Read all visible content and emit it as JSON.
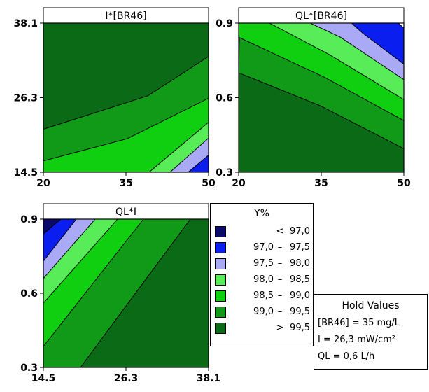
{
  "chart_data": [
    {
      "type": "contour",
      "title": "I*[BR46]",
      "x_variable": "[BR46]",
      "y_variable": "I",
      "x_ticks": [
        "20",
        "35",
        "50"
      ],
      "y_ticks": [
        "38.1",
        "26.3",
        "14.5"
      ],
      "xlim": [
        20,
        50
      ],
      "ylim": [
        14.5,
        38.1
      ],
      "contour_levels": [
        97.0,
        97.5,
        98.0,
        98.5,
        99.0,
        99.5
      ],
      "regions": [
        {
          "band": "> 99.5",
          "color": "#0a6a16",
          "polygon": [
            [
              20,
              38.1
            ],
            [
              50,
              38.1
            ],
            [
              50,
              32.8
            ],
            [
              39,
              26.6
            ],
            [
              20,
              21.3
            ]
          ]
        },
        {
          "band": "99.0 - 99.5",
          "color": "#109a18",
          "polygon": [
            [
              20,
              21.3
            ],
            [
              39,
              26.6
            ],
            [
              50,
              32.8
            ],
            [
              50,
              26.2
            ],
            [
              35.2,
              19.8
            ],
            [
              20,
              16.3
            ]
          ]
        },
        {
          "band": "98.5 - 99.0",
          "color": "#10cf10",
          "polygon": [
            [
              20,
              16.3
            ],
            [
              35.2,
              19.8
            ],
            [
              50,
              26.2
            ],
            [
              50,
              22.4
            ],
            [
              39.2,
              14.5
            ],
            [
              20,
              14.5
            ]
          ]
        },
        {
          "band": "98.0 - 98.5",
          "color": "#58ec58",
          "polygon": [
            [
              39.2,
              14.5
            ],
            [
              50,
              22.4
            ],
            [
              50,
              19.9
            ],
            [
              43,
              14.5
            ]
          ]
        },
        {
          "band": "97.5 - 98.0",
          "color": "#a9a9f5",
          "polygon": [
            [
              43,
              14.5
            ],
            [
              50,
              19.9
            ],
            [
              50,
              17.2
            ],
            [
              46.3,
              14.5
            ]
          ]
        },
        {
          "band": "97.0 - 97.5",
          "color": "#0a1ef0",
          "polygon": [
            [
              46.3,
              14.5
            ],
            [
              50,
              17.2
            ],
            [
              50,
              14.5
            ]
          ]
        }
      ]
    },
    {
      "type": "contour",
      "title": "QL*[BR46]",
      "x_variable": "[BR46]",
      "y_variable": "QL",
      "x_ticks": [
        "20",
        "35",
        "50"
      ],
      "y_ticks": [
        "0.9",
        "0.6",
        "0.3"
      ],
      "xlim": [
        20,
        50
      ],
      "ylim": [
        0.3,
        0.9
      ],
      "contour_levels": [
        97.0,
        97.5,
        98.0,
        98.5,
        99.0,
        99.5
      ],
      "regions": [
        {
          "band": "> 99.5",
          "color": "#0a6a16",
          "polygon": [
            [
              20,
              0.3
            ],
            [
              20,
              0.7
            ],
            [
              35,
              0.566
            ],
            [
              50,
              0.395
            ],
            [
              50,
              0.3
            ]
          ]
        },
        {
          "band": "99.0 - 99.5",
          "color": "#109a18",
          "polygon": [
            [
              20,
              0.7
            ],
            [
              35,
              0.566
            ],
            [
              50,
              0.395
            ],
            [
              50,
              0.508
            ],
            [
              35.5,
              0.683
            ],
            [
              20,
              0.843
            ],
            [
              20,
              0.9
            ],
            [
              20.2,
              0.9
            ]
          ]
        },
        {
          "band": "98.5 - 99.0",
          "color": "#10cf10",
          "polygon": [
            [
              20,
              0.843
            ],
            [
              35.5,
              0.683
            ],
            [
              50,
              0.508
            ],
            [
              50,
              0.592
            ],
            [
              36.5,
              0.773
            ],
            [
              25.6,
              0.9
            ],
            [
              20,
              0.9
            ]
          ]
        },
        {
          "band": "98.0 - 98.5",
          "color": "#58ec58",
          "polygon": [
            [
              25.6,
              0.9
            ],
            [
              36.5,
              0.773
            ],
            [
              50,
              0.592
            ],
            [
              50,
              0.672
            ],
            [
              38.5,
              0.843
            ],
            [
              33,
              0.9
            ]
          ]
        },
        {
          "band": "97.5 - 98.0",
          "color": "#a9a9f5",
          "polygon": [
            [
              33,
              0.9
            ],
            [
              38.5,
              0.843
            ],
            [
              50,
              0.672
            ],
            [
              50,
              0.735
            ],
            [
              42.5,
              0.86
            ],
            [
              40.5,
              0.9
            ]
          ]
        },
        {
          "band": "97.0 - 97.5",
          "color": "#0a1ef0",
          "polygon": [
            [
              40.5,
              0.9
            ],
            [
              42.5,
              0.86
            ],
            [
              50,
              0.735
            ],
            [
              50,
              0.88
            ],
            [
              49,
              0.9
            ]
          ]
        }
      ]
    },
    {
      "type": "contour",
      "title": "QL*I",
      "x_variable": "I",
      "y_variable": "QL",
      "x_ticks": [
        "14.5",
        "26.3",
        "38.1"
      ],
      "y_ticks": [
        "0.9",
        "0.6",
        "0.3"
      ],
      "xlim": [
        14.5,
        38.1
      ],
      "ylim": [
        0.3,
        0.9
      ],
      "contour_levels": [
        97.0,
        97.5,
        98.0,
        98.5,
        99.0,
        99.5
      ],
      "regions": [
        {
          "band": "> 99.5",
          "color": "#0a6a16",
          "polygon": [
            [
              19.8,
              0.3
            ],
            [
              38.1,
              0.3
            ],
            [
              38.1,
              0.9
            ],
            [
              35.5,
              0.9
            ]
          ]
        },
        {
          "band": "99.0 - 99.5",
          "color": "#109a18",
          "polygon": [
            [
              14.5,
              0.3
            ],
            [
              19.8,
              0.3
            ],
            [
              35.5,
              0.9
            ],
            [
              28.8,
              0.9
            ],
            [
              14.5,
              0.385
            ]
          ]
        },
        {
          "band": "98.5 - 99.0",
          "color": "#10cf10",
          "polygon": [
            [
              14.5,
              0.385
            ],
            [
              28.8,
              0.9
            ],
            [
              25.1,
              0.9
            ],
            [
              14.5,
              0.56
            ]
          ]
        },
        {
          "band": "98.0 - 98.5",
          "color": "#58ec58",
          "polygon": [
            [
              14.5,
              0.56
            ],
            [
              25.1,
              0.9
            ],
            [
              21.9,
              0.9
            ],
            [
              14.5,
              0.66
            ]
          ]
        },
        {
          "band": "97.5 - 98.0",
          "color": "#a9a9f5",
          "polygon": [
            [
              14.5,
              0.66
            ],
            [
              21.9,
              0.9
            ],
            [
              19.2,
              0.9
            ],
            [
              14.5,
              0.73
            ]
          ]
        },
        {
          "band": "97.0 - 97.5",
          "color": "#0a1ef0",
          "polygon": [
            [
              14.5,
              0.73
            ],
            [
              19.2,
              0.9
            ],
            [
              17,
              0.9
            ],
            [
              14.5,
              0.84
            ]
          ]
        },
        {
          "band": "< 97.0",
          "color": "#0a0a6a",
          "polygon": [
            [
              14.5,
              0.84
            ],
            [
              17,
              0.9
            ],
            [
              14.5,
              0.9
            ]
          ]
        }
      ]
    }
  ],
  "legend": {
    "title": "Y%",
    "items": [
      {
        "a": "",
        "op": "<",
        "b": "97,0",
        "color": "#0a0a6a"
      },
      {
        "a": "97,0",
        "op": "–",
        "b": "97,5",
        "color": "#0a1ef0"
      },
      {
        "a": "97,5",
        "op": "–",
        "b": "98,0",
        "color": "#a9a9f5"
      },
      {
        "a": "98,0",
        "op": "–",
        "b": "98,5",
        "color": "#58ec58"
      },
      {
        "a": "98,5",
        "op": "–",
        "b": "99,0",
        "color": "#10cf10"
      },
      {
        "a": "99,0",
        "op": "–",
        "b": "99,5",
        "color": "#109a18"
      },
      {
        "a": "",
        "op": ">",
        "b": "99,5",
        "color": "#0a6a16"
      }
    ]
  },
  "hold_values": {
    "title": "Hold Values",
    "lines": [
      "[BR46] = 35 mg/L",
      "I = 26,3 mW/cm²",
      "QL = 0,6 L/h"
    ]
  }
}
